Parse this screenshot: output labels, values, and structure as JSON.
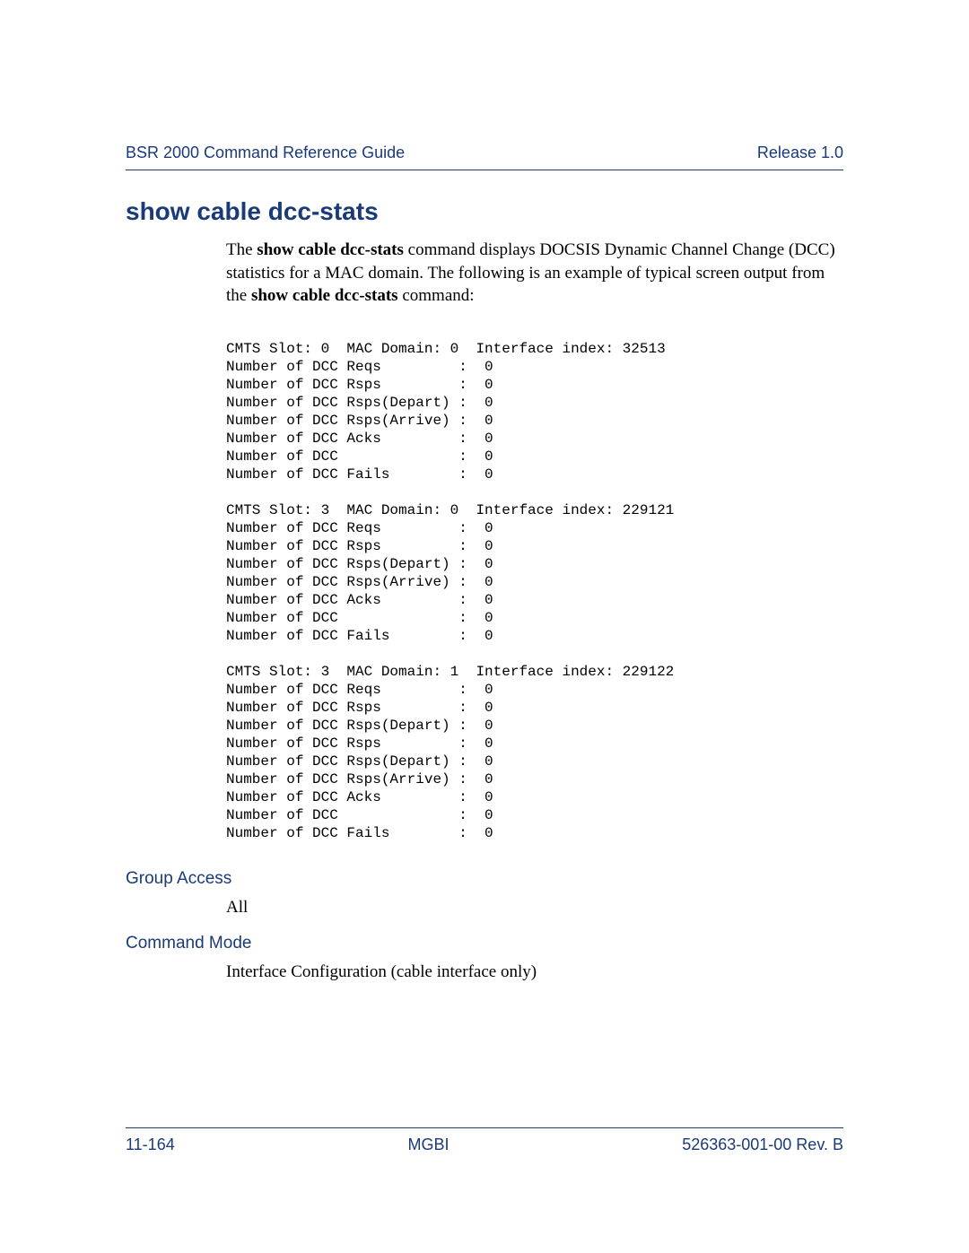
{
  "header": {
    "left": "BSR 2000 Command Reference Guide",
    "right": "Release 1.0"
  },
  "title": "show cable dcc-stats",
  "intro": {
    "pre1": "The ",
    "bold1": "show cable dcc-stats",
    "mid1": " command displays DOCSIS Dynamic Channel Change (DCC) statistics for a MAC domain. The following is an example of typical screen output from the ",
    "bold2": "show cable dcc-stats",
    "post1": " command:"
  },
  "output": "CMTS Slot: 0  MAC Domain: 0  Interface index: 32513\nNumber of DCC Reqs         :  0\nNumber of DCC Rsps         :  0\nNumber of DCC Rsps(Depart) :  0\nNumber of DCC Rsps(Arrive) :  0\nNumber of DCC Acks         :  0\nNumber of DCC              :  0\nNumber of DCC Fails        :  0\n\nCMTS Slot: 3  MAC Domain: 0  Interface index: 229121\nNumber of DCC Reqs         :  0\nNumber of DCC Rsps         :  0\nNumber of DCC Rsps(Depart) :  0\nNumber of DCC Rsps(Arrive) :  0\nNumber of DCC Acks         :  0\nNumber of DCC              :  0\nNumber of DCC Fails        :  0\n\nCMTS Slot: 3  MAC Domain: 1  Interface index: 229122\nNumber of DCC Reqs         :  0\nNumber of DCC Rsps         :  0\nNumber of DCC Rsps(Depart) :  0\nNumber of DCC Rsps         :  0\nNumber of DCC Rsps(Depart) :  0\nNumber of DCC Rsps(Arrive) :  0\nNumber of DCC Acks         :  0\nNumber of DCC              :  0\nNumber of DCC Fails        :  0",
  "groupAccess": {
    "heading": "Group Access",
    "value": "All"
  },
  "commandMode": {
    "heading": "Command Mode",
    "value": "Interface Configuration (cable interface only)"
  },
  "footer": {
    "left": "11-164",
    "center": "MGBI",
    "right": "526363-001-00 Rev. B"
  }
}
